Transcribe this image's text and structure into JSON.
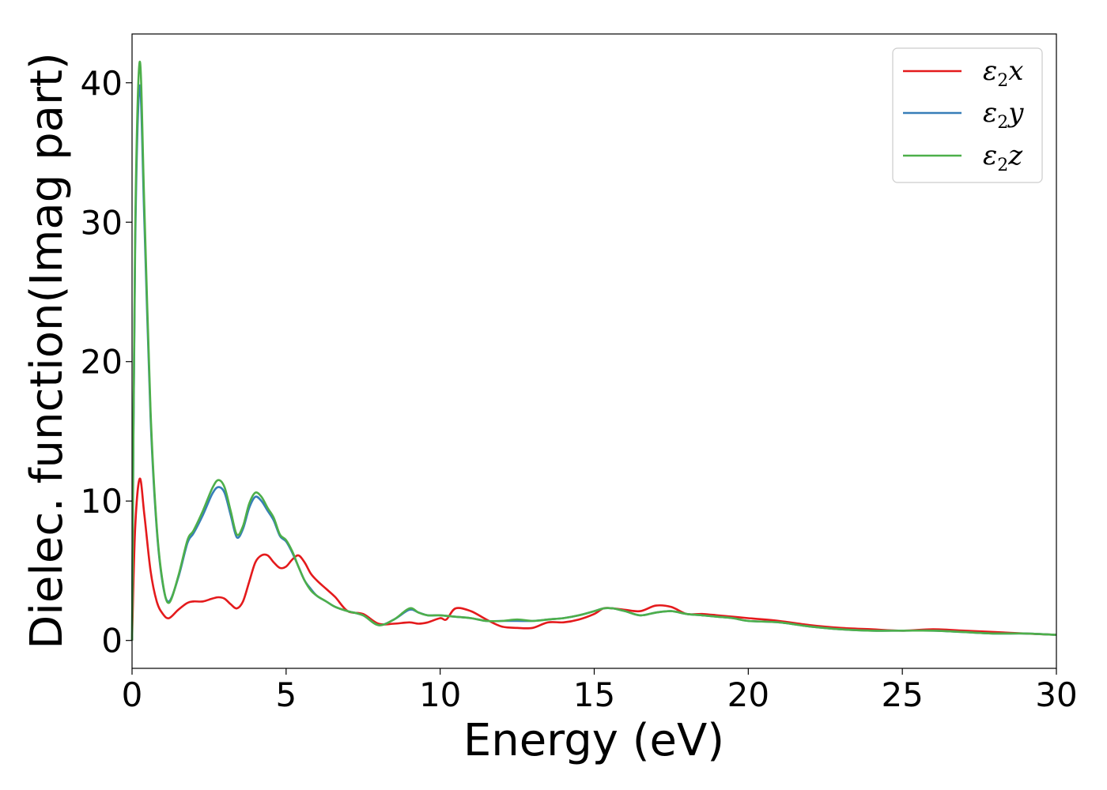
{
  "chart_data": {
    "type": "line",
    "xlabel": "Energy (eV)",
    "ylabel": "Dielec. function(Imag part)",
    "xlim": [
      0,
      30
    ],
    "ylim": [
      -2,
      43.5
    ],
    "xticks": [
      0,
      5,
      10,
      15,
      20,
      25,
      30
    ],
    "yticks": [
      0,
      10,
      20,
      30,
      40
    ],
    "grid": false,
    "legend_position": "top-right",
    "series": [
      {
        "name": "x",
        "legend_symbol": "ε",
        "legend_sub": "2",
        "color": "#e41a1c",
        "x": [
          0,
          0.1,
          0.25,
          0.4,
          0.6,
          0.8,
          1.0,
          1.2,
          1.5,
          1.8,
          2.0,
          2.3,
          2.6,
          2.8,
          3.0,
          3.2,
          3.4,
          3.6,
          3.8,
          4.0,
          4.2,
          4.4,
          4.6,
          4.8,
          5.0,
          5.2,
          5.4,
          5.6,
          5.8,
          6.0,
          6.3,
          6.6,
          7.0,
          7.5,
          8.0,
          8.5,
          9.0,
          9.3,
          9.6,
          10.0,
          10.2,
          10.5,
          11.0,
          11.5,
          12.0,
          12.5,
          13.0,
          13.5,
          14.0,
          14.5,
          15.0,
          15.3,
          15.6,
          16.0,
          16.5,
          17.0,
          17.5,
          18.0,
          18.5,
          19.0,
          19.5,
          20.0,
          21.0,
          22.0,
          23.0,
          24.0,
          25.0,
          26.0,
          27.0,
          28.0,
          29.0,
          30.0
        ],
        "values": [
          0,
          8.0,
          11.6,
          9.0,
          5.0,
          2.8,
          1.9,
          1.6,
          2.2,
          2.7,
          2.8,
          2.8,
          3.0,
          3.1,
          3.0,
          2.6,
          2.3,
          2.8,
          4.2,
          5.6,
          6.1,
          6.1,
          5.6,
          5.2,
          5.3,
          5.8,
          6.1,
          5.6,
          4.8,
          4.3,
          3.7,
          3.1,
          2.1,
          1.9,
          1.2,
          1.2,
          1.3,
          1.2,
          1.3,
          1.6,
          1.5,
          2.3,
          2.1,
          1.5,
          1.0,
          0.9,
          0.9,
          1.3,
          1.3,
          1.5,
          1.9,
          2.3,
          2.3,
          2.2,
          2.1,
          2.5,
          2.4,
          1.9,
          1.9,
          1.8,
          1.7,
          1.6,
          1.4,
          1.1,
          0.9,
          0.8,
          0.7,
          0.8,
          0.7,
          0.6,
          0.5,
          0.4
        ]
      },
      {
        "name": "y",
        "legend_symbol": "ε",
        "legend_sub": "2",
        "color": "#377eb8",
        "x": [
          0,
          0.1,
          0.25,
          0.4,
          0.6,
          0.8,
          1.0,
          1.2,
          1.5,
          1.8,
          2.0,
          2.3,
          2.6,
          2.8,
          3.0,
          3.2,
          3.4,
          3.6,
          3.8,
          4.0,
          4.2,
          4.4,
          4.6,
          4.8,
          5.0,
          5.2,
          5.4,
          5.6,
          5.8,
          6.0,
          6.3,
          6.6,
          7.0,
          7.5,
          8.0,
          8.5,
          9.0,
          9.3,
          9.6,
          10.0,
          10.5,
          11.0,
          11.5,
          12.0,
          12.5,
          13.0,
          13.5,
          14.0,
          14.5,
          15.0,
          15.3,
          15.6,
          16.0,
          16.5,
          17.0,
          17.5,
          18.0,
          18.5,
          19.0,
          19.5,
          20.0,
          21.0,
          22.0,
          23.0,
          24.0,
          25.0,
          26.0,
          27.0,
          28.0,
          29.0,
          30.0
        ],
        "values": [
          0,
          28.0,
          39.8,
          30.0,
          16.0,
          8.0,
          4.0,
          2.8,
          4.5,
          7.0,
          7.7,
          9.0,
          10.5,
          11.0,
          10.6,
          9.0,
          7.4,
          8.0,
          9.5,
          10.3,
          10.0,
          9.3,
          8.6,
          7.5,
          7.1,
          6.3,
          5.3,
          4.3,
          3.7,
          3.2,
          2.8,
          2.4,
          2.1,
          1.8,
          1.1,
          1.5,
          2.2,
          2.0,
          1.8,
          1.8,
          1.7,
          1.6,
          1.4,
          1.4,
          1.4,
          1.4,
          1.5,
          1.6,
          1.8,
          2.1,
          2.3,
          2.3,
          2.1,
          1.8,
          2.0,
          2.1,
          1.9,
          1.8,
          1.7,
          1.6,
          1.4,
          1.3,
          1.0,
          0.8,
          0.7,
          0.7,
          0.7,
          0.6,
          0.5,
          0.5,
          0.4
        ]
      },
      {
        "name": "z",
        "legend_symbol": "ε",
        "legend_sub": "2",
        "color": "#4daf4a",
        "x": [
          0,
          0.1,
          0.25,
          0.4,
          0.6,
          0.8,
          1.0,
          1.2,
          1.5,
          1.8,
          2.0,
          2.3,
          2.6,
          2.8,
          3.0,
          3.2,
          3.4,
          3.6,
          3.8,
          4.0,
          4.2,
          4.4,
          4.6,
          4.8,
          5.0,
          5.2,
          5.4,
          5.6,
          5.8,
          6.0,
          6.3,
          6.6,
          7.0,
          7.5,
          8.0,
          8.5,
          9.0,
          9.3,
          9.6,
          10.0,
          10.5,
          11.0,
          11.5,
          12.0,
          12.5,
          13.0,
          13.5,
          14.0,
          14.5,
          15.0,
          15.3,
          15.6,
          16.0,
          16.5,
          17.0,
          17.5,
          18.0,
          18.5,
          19.0,
          19.5,
          20.0,
          21.0,
          22.0,
          23.0,
          24.0,
          25.0,
          26.0,
          27.0,
          28.0,
          29.0,
          30.0
        ],
        "values": [
          0,
          29.0,
          41.5,
          31.0,
          16.5,
          8.2,
          4.1,
          2.7,
          4.6,
          7.2,
          7.9,
          9.3,
          10.9,
          11.5,
          11.0,
          9.3,
          7.6,
          8.2,
          9.8,
          10.6,
          10.3,
          9.5,
          8.8,
          7.6,
          7.2,
          6.4,
          5.3,
          4.3,
          3.6,
          3.2,
          2.8,
          2.4,
          2.1,
          1.8,
          1.1,
          1.5,
          2.3,
          2.0,
          1.8,
          1.8,
          1.7,
          1.6,
          1.4,
          1.4,
          1.5,
          1.4,
          1.5,
          1.6,
          1.8,
          2.1,
          2.3,
          2.3,
          2.1,
          1.8,
          2.0,
          2.1,
          1.9,
          1.8,
          1.7,
          1.6,
          1.4,
          1.3,
          1.0,
          0.8,
          0.7,
          0.7,
          0.7,
          0.6,
          0.5,
          0.5,
          0.4
        ]
      }
    ]
  }
}
